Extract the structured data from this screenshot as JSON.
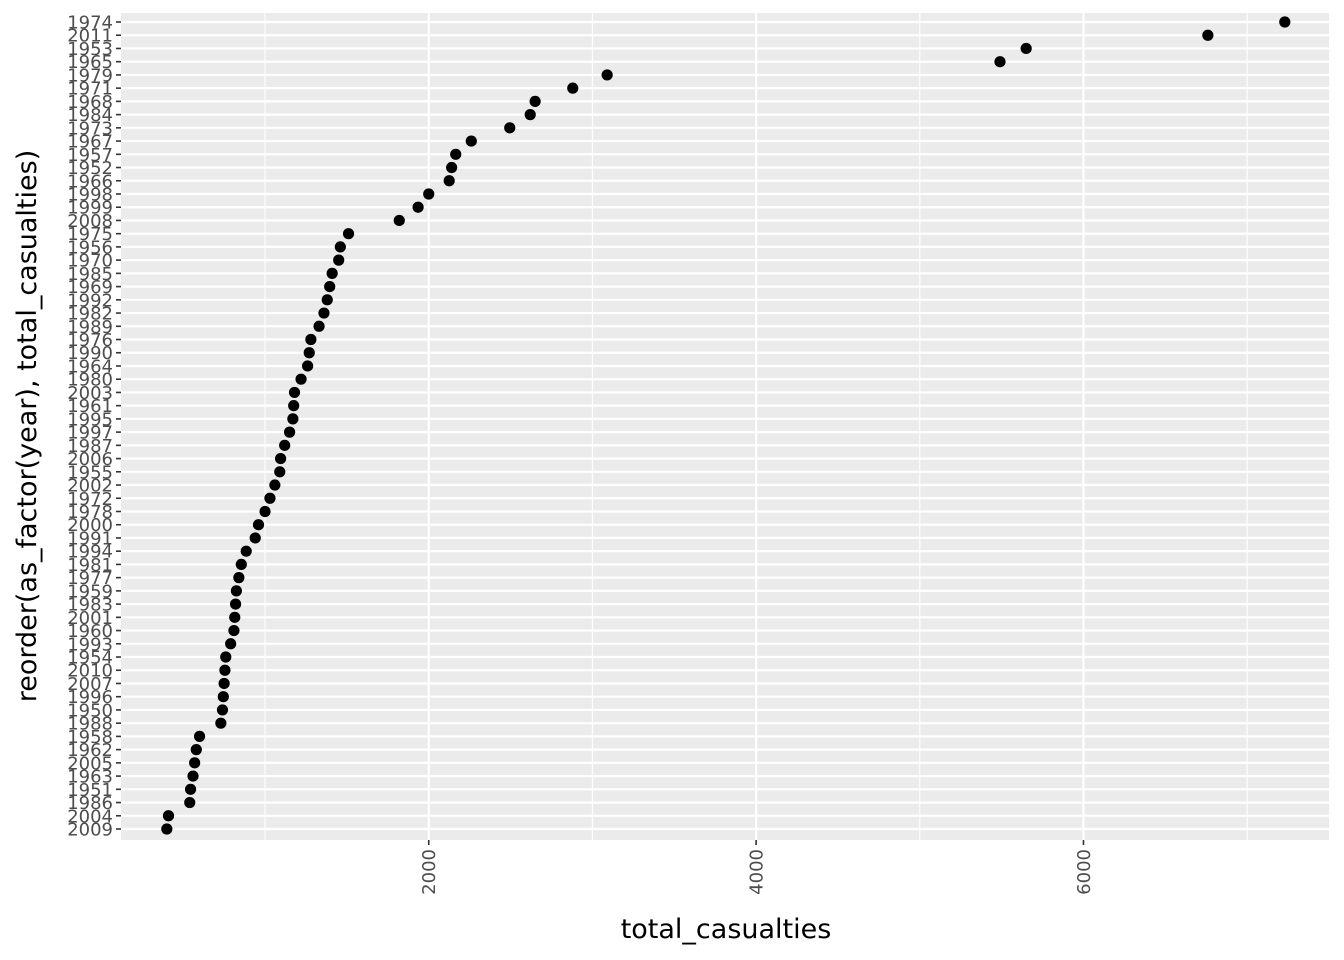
{
  "chart_data": {
    "type": "scatter",
    "xlabel": "total_casualties",
    "ylabel": "reorder(as_factor(year), total_casualties)",
    "xlim": [
      120,
      7500
    ],
    "x_ticks": [
      "2000",
      "4000",
      "6000"
    ],
    "x_tick_values": [
      2000,
      4000,
      6000
    ],
    "grid": true,
    "colors": {
      "panel": "#ebebeb",
      "grid": "#ffffff",
      "point": "#000000",
      "tick_text": "#4d4d4d"
    },
    "points": [
      {
        "year": "2009",
        "value": 400
      },
      {
        "year": "2004",
        "value": 410
      },
      {
        "year": "1986",
        "value": 540
      },
      {
        "year": "1951",
        "value": 545
      },
      {
        "year": "1963",
        "value": 560
      },
      {
        "year": "2005",
        "value": 570
      },
      {
        "year": "1962",
        "value": 580
      },
      {
        "year": "1958",
        "value": 600
      },
      {
        "year": "1988",
        "value": 730
      },
      {
        "year": "1950",
        "value": 740
      },
      {
        "year": "1996",
        "value": 745
      },
      {
        "year": "2007",
        "value": 750
      },
      {
        "year": "2010",
        "value": 755
      },
      {
        "year": "1954",
        "value": 760
      },
      {
        "year": "1993",
        "value": 790
      },
      {
        "year": "1960",
        "value": 810
      },
      {
        "year": "2001",
        "value": 815
      },
      {
        "year": "1983",
        "value": 820
      },
      {
        "year": "1959",
        "value": 825
      },
      {
        "year": "1977",
        "value": 840
      },
      {
        "year": "1981",
        "value": 855
      },
      {
        "year": "1994",
        "value": 885
      },
      {
        "year": "1991",
        "value": 940
      },
      {
        "year": "2000",
        "value": 960
      },
      {
        "year": "1978",
        "value": 1000
      },
      {
        "year": "1972",
        "value": 1030
      },
      {
        "year": "2002",
        "value": 1060
      },
      {
        "year": "1955",
        "value": 1090
      },
      {
        "year": "2006",
        "value": 1095
      },
      {
        "year": "1987",
        "value": 1120
      },
      {
        "year": "1997",
        "value": 1150
      },
      {
        "year": "1995",
        "value": 1170
      },
      {
        "year": "1961",
        "value": 1175
      },
      {
        "year": "2003",
        "value": 1180
      },
      {
        "year": "1980",
        "value": 1220
      },
      {
        "year": "1964",
        "value": 1260
      },
      {
        "year": "1990",
        "value": 1270
      },
      {
        "year": "1976",
        "value": 1280
      },
      {
        "year": "1989",
        "value": 1330
      },
      {
        "year": "1982",
        "value": 1360
      },
      {
        "year": "1992",
        "value": 1380
      },
      {
        "year": "1969",
        "value": 1395
      },
      {
        "year": "1985",
        "value": 1410
      },
      {
        "year": "1970",
        "value": 1450
      },
      {
        "year": "1956",
        "value": 1460
      },
      {
        "year": "1975",
        "value": 1510
      },
      {
        "year": "2008",
        "value": 1820
      },
      {
        "year": "1999",
        "value": 1935
      },
      {
        "year": "1998",
        "value": 2000
      },
      {
        "year": "1966",
        "value": 2125
      },
      {
        "year": "1952",
        "value": 2140
      },
      {
        "year": "1957",
        "value": 2165
      },
      {
        "year": "1967",
        "value": 2260
      },
      {
        "year": "1973",
        "value": 2495
      },
      {
        "year": "1984",
        "value": 2620
      },
      {
        "year": "1968",
        "value": 2650
      },
      {
        "year": "1971",
        "value": 2880
      },
      {
        "year": "1979",
        "value": 3090
      },
      {
        "year": "1965",
        "value": 5490
      },
      {
        "year": "1953",
        "value": 5650
      },
      {
        "year": "2011",
        "value": 6760
      },
      {
        "year": "1974",
        "value": 7230
      }
    ]
  }
}
